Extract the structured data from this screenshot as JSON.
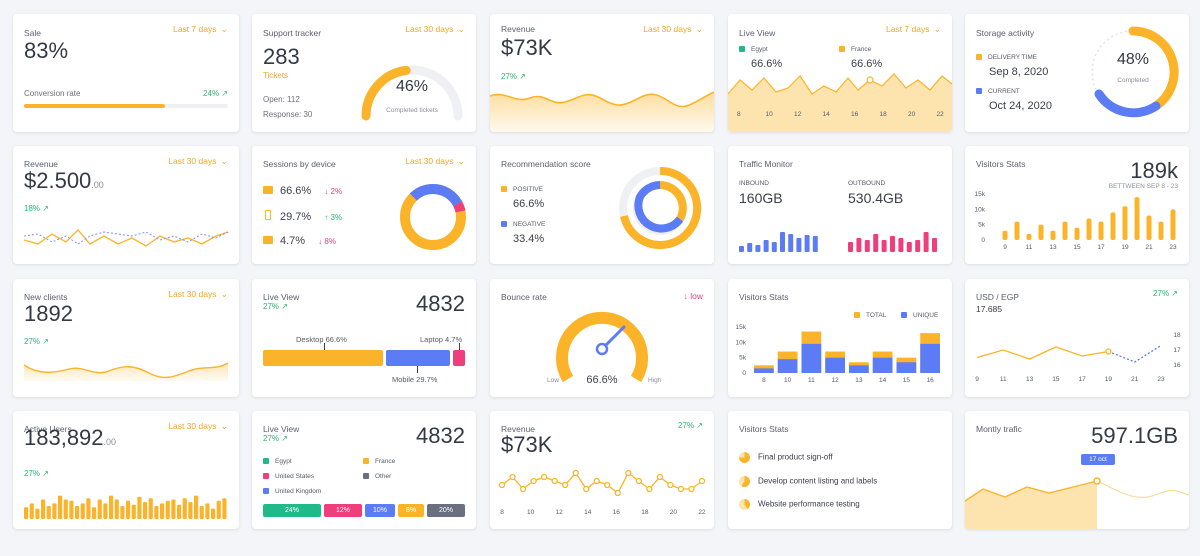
{
  "colors": {
    "orange": "#fbb429",
    "blue": "#5b7cf5",
    "pink": "#ef3e7b",
    "green": "#2bb673",
    "grey": "#6b7080",
    "teal": "#20b98a"
  },
  "sale": {
    "title": "Sale",
    "period": "Last 7 days",
    "value": "83%",
    "label": "Conversion rate",
    "change": "24%",
    "progress": 0.69
  },
  "support": {
    "title": "Support tracker",
    "period": "Last 30 days",
    "value": "283",
    "unit": "Tickets",
    "open": "Open: 112",
    "response": "Response: 30",
    "pct": "46%",
    "gauge_label": "Completed tickets",
    "fraction": 0.46
  },
  "revenue1": {
    "title": "Revenue",
    "period": "Last 30 days",
    "value": "$73K",
    "change": "27%"
  },
  "live1": {
    "title": "Live View",
    "period": "Last 7 days",
    "legend": [
      {
        "name": "Egypt",
        "value": "66.6%",
        "color": "#20b98a"
      },
      {
        "name": "France",
        "value": "66.6%",
        "color": "#fbb429"
      }
    ],
    "ticks": [
      "8",
      "10",
      "12",
      "14",
      "16",
      "18",
      "20",
      "22"
    ]
  },
  "storage": {
    "title": "Storage activity",
    "delivery_label": "DELIVERY TIME",
    "delivery_date": "Sep 8, 2020",
    "current_label": "CURRENT",
    "current_date": "Oct 24, 2020",
    "pct": "48%",
    "ring_label": "Completed"
  },
  "revenue2": {
    "title": "Revenue",
    "period": "Last 30 days",
    "value": "$2.500",
    "cents": ".00",
    "change": "18%"
  },
  "sessions": {
    "title": "Sessions by device",
    "period": "Last 30 days",
    "devices": [
      {
        "icon": "desktop-icon",
        "value": "66.6%",
        "change": "2%",
        "dir": "down"
      },
      {
        "icon": "mobile-icon",
        "value": "29.7%",
        "change": "3%",
        "dir": "up"
      },
      {
        "icon": "tablet-icon",
        "value": "4.7%",
        "change": "8%",
        "dir": "down"
      }
    ]
  },
  "recommend": {
    "title": "Recommendation score",
    "positive_label": "POSITIVE",
    "positive_value": "66.6%",
    "negative_label": "NEGATIVE",
    "negative_value": "33.4%"
  },
  "traffic": {
    "title": "Traffic Monitor",
    "in_label": "INBOUND",
    "in_value": "160GB",
    "out_label": "OUTBOUND",
    "out_value": "530.4GB"
  },
  "visitors1": {
    "title": "Visitors Stats",
    "value": "189k",
    "subtitle": "BETTWEEN SEP 8 - 23",
    "yticks": [
      "15k",
      "10k",
      "5k",
      "0"
    ],
    "xticks": [
      "9",
      "11",
      "13",
      "15",
      "17",
      "19",
      "21",
      "23"
    ]
  },
  "clients": {
    "title": "New clients",
    "period": "Last 30 days",
    "value": "1892",
    "change": "27%"
  },
  "live2": {
    "title": "Live View",
    "change": "27%",
    "value": "4832",
    "desktop": "Desktop 66.6%",
    "laptop": "Laptop 4.7%",
    "mobile": "Mobile 29.7%"
  },
  "bounce": {
    "title": "Bounce rate",
    "status": "low",
    "value": "66.6%",
    "low_label": "Low",
    "high_label": "High"
  },
  "visitors2": {
    "title": "Visitors Stats",
    "legend_total": "TOTAL",
    "legend_unique": "UNIQUE",
    "yticks": [
      "15k",
      "10k",
      "5k",
      "0"
    ],
    "xticks": [
      "8",
      "10",
      "11",
      "12",
      "13",
      "14",
      "15",
      "16"
    ]
  },
  "usd": {
    "title": "USD / EGP",
    "change": "27%",
    "value": "17.685",
    "yticks": [
      "18",
      "17",
      "16"
    ],
    "xticks": [
      "9",
      "11",
      "13",
      "15",
      "17",
      "19",
      "21",
      "23"
    ]
  },
  "active": {
    "title": "Active Users",
    "period": "Last 30 days",
    "value": "183,892",
    "cents": ".00",
    "change": "27%"
  },
  "live3": {
    "title": "Live View",
    "change": "27%",
    "value": "4832",
    "legend": [
      {
        "name": "Egypt",
        "color": "#20b98a"
      },
      {
        "name": "France",
        "color": "#fbb429"
      },
      {
        "name": "United States",
        "color": "#ef3e7b"
      },
      {
        "name": "Other",
        "color": "#6b7080"
      },
      {
        "name": "United Kingdom",
        "color": "#5b7cf5"
      }
    ],
    "segments": [
      "24%",
      "12%",
      "10%",
      "8%",
      "20%"
    ]
  },
  "revenue3": {
    "title": "Revenue",
    "change": "27%",
    "value": "$73K",
    "xticks": [
      "8",
      "10",
      "12",
      "14",
      "16",
      "18",
      "20",
      "22"
    ]
  },
  "visitors3": {
    "title": "Visitors Stats",
    "tasks": [
      "Final product sign-off",
      "Develop content listing and labels",
      "Website performance testing"
    ]
  },
  "monthly": {
    "title": "Montly trafic",
    "value": "597.1GB",
    "tooltip": "17 oct"
  },
  "chart_data": [
    {
      "type": "bar",
      "title": "Visitors Stats",
      "categories": [
        "9",
        "10",
        "11",
        "12",
        "13",
        "14",
        "15",
        "16",
        "17",
        "18",
        "19",
        "20",
        "21",
        "22",
        "23"
      ],
      "values": [
        3,
        6,
        2,
        5,
        3,
        6,
        4,
        7,
        6,
        9,
        11,
        14,
        8,
        6,
        10
      ],
      "ylim": [
        0,
        15
      ]
    },
    {
      "type": "bar",
      "title": "Visitors Stats",
      "categories": [
        "8",
        "10",
        "11",
        "12",
        "13",
        "14",
        "15",
        "16"
      ],
      "series": [
        {
          "name": "TOTAL",
          "values": [
            2.5,
            7,
            13.5,
            7,
            3.5,
            7,
            5,
            13
          ]
        },
        {
          "name": "UNIQUE",
          "values": [
            1.5,
            4.5,
            9.5,
            5,
            2.5,
            5,
            3.5,
            9.5
          ]
        }
      ],
      "ylim": [
        0,
        15
      ]
    },
    {
      "type": "line",
      "title": "USD / EGP",
      "x": [
        "9",
        "11",
        "13",
        "15",
        "17",
        "19",
        "21",
        "23"
      ],
      "values": [
        16.5,
        17.0,
        16.4,
        17.2,
        16.6,
        16.9,
        16.2,
        17.3
      ],
      "ylim": [
        16,
        18
      ]
    }
  ]
}
